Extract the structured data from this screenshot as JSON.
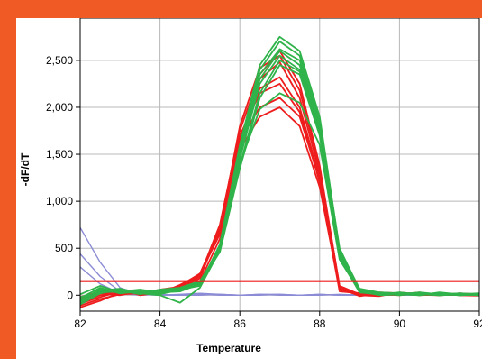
{
  "chart_data": {
    "type": "line",
    "title": "",
    "xlabel": "Temperature",
    "ylabel": "-dF/dT",
    "xlim": [
      82,
      92
    ],
    "ylim": [
      -170,
      2950
    ],
    "x_ticks": [
      82,
      84,
      86,
      88,
      90,
      92
    ],
    "x_tick_labels": [
      "82",
      "84",
      "86",
      "88",
      "90",
      "92"
    ],
    "y_ticks": [
      0,
      500,
      1000,
      1500,
      2000,
      2500
    ],
    "y_tick_labels": [
      "0",
      "500",
      "1,000",
      "1,500",
      "2,000",
      "2,500"
    ],
    "grid": true,
    "threshold": 150,
    "colors": {
      "frame": "#f05a24",
      "red_series": "#ee1c1c",
      "green_series": "#2fb34a",
      "blue_series": "#8c8cd6",
      "threshold": "#ee1c1c",
      "grid": "#b8b8b8"
    },
    "x": [
      82,
      82.5,
      83,
      83.5,
      84,
      84.5,
      85,
      85.5,
      86,
      86.5,
      87,
      87.5,
      88,
      88.5,
      89,
      89.5,
      90,
      90.5,
      91,
      91.5,
      92
    ],
    "series": [
      {
        "group": "red",
        "values": [
          -110,
          -40,
          10,
          20,
          30,
          60,
          150,
          600,
          1650,
          2300,
          2480,
          2100,
          1300,
          80,
          -10,
          20,
          10,
          5,
          0,
          10,
          0
        ]
      },
      {
        "group": "red",
        "values": [
          -90,
          -20,
          40,
          10,
          60,
          90,
          200,
          700,
          1800,
          2420,
          2550,
          2180,
          1350,
          100,
          10,
          30,
          20,
          0,
          10,
          5,
          0
        ]
      },
      {
        "group": "red",
        "values": [
          -60,
          20,
          0,
          40,
          20,
          110,
          220,
          650,
          1600,
          2200,
          2320,
          2000,
          1250,
          60,
          0,
          -10,
          30,
          10,
          0,
          20,
          10
        ]
      },
      {
        "group": "red",
        "values": [
          -130,
          -60,
          30,
          50,
          40,
          70,
          180,
          720,
          1700,
          2150,
          2250,
          1950,
          1200,
          40,
          20,
          10,
          0,
          20,
          10,
          0,
          -5
        ]
      },
      {
        "group": "red",
        "values": [
          -20,
          40,
          60,
          0,
          30,
          80,
          200,
          680,
          1550,
          1900,
          2000,
          1800,
          1150,
          70,
          10,
          20,
          10,
          30,
          0,
          10,
          0
        ]
      },
      {
        "group": "red",
        "values": [
          -80,
          0,
          20,
          30,
          50,
          90,
          210,
          750,
          1750,
          2350,
          2600,
          2250,
          1380,
          90,
          0,
          10,
          20,
          10,
          20,
          0,
          5
        ]
      },
      {
        "group": "red",
        "values": [
          -40,
          30,
          10,
          40,
          30,
          100,
          230,
          700,
          1650,
          2000,
          2100,
          1900,
          1220,
          60,
          20,
          0,
          10,
          20,
          10,
          10,
          0
        ]
      },
      {
        "group": "green",
        "values": [
          -60,
          60,
          40,
          20,
          0,
          -80,
          80,
          480,
          1500,
          2350,
          2620,
          2500,
          1800,
          450,
          40,
          10,
          20,
          0,
          30,
          10,
          0
        ]
      },
      {
        "group": "green",
        "values": [
          -100,
          20,
          60,
          40,
          30,
          40,
          120,
          520,
          1550,
          2400,
          2700,
          2550,
          1850,
          500,
          60,
          20,
          10,
          20,
          0,
          10,
          5
        ]
      },
      {
        "group": "green",
        "values": [
          -30,
          80,
          20,
          50,
          40,
          60,
          140,
          500,
          1450,
          2250,
          2550,
          2400,
          1750,
          420,
          50,
          10,
          30,
          10,
          20,
          0,
          10
        ]
      },
      {
        "group": "green",
        "values": [
          -80,
          40,
          50,
          10,
          50,
          70,
          130,
          460,
          1350,
          2100,
          2450,
          2350,
          1700,
          400,
          30,
          20,
          0,
          20,
          10,
          20,
          0
        ]
      },
      {
        "group": "green",
        "values": [
          10,
          100,
          30,
          30,
          20,
          50,
          110,
          540,
          1600,
          2450,
          2750,
          2600,
          1900,
          480,
          70,
          30,
          20,
          10,
          0,
          10,
          20
        ]
      },
      {
        "group": "green",
        "values": [
          -50,
          50,
          70,
          20,
          60,
          80,
          150,
          490,
          1400,
          1980,
          2150,
          2050,
          1600,
          380,
          40,
          0,
          10,
          30,
          10,
          0,
          10
        ]
      },
      {
        "group": "green",
        "values": [
          -20,
          30,
          40,
          60,
          30,
          50,
          130,
          510,
          1500,
          2300,
          2600,
          2450,
          1780,
          440,
          50,
          20,
          10,
          0,
          20,
          10,
          0
        ]
      },
      {
        "group": "green",
        "values": [
          -70,
          70,
          20,
          40,
          10,
          60,
          100,
          470,
          1380,
          2150,
          2500,
          2380,
          1720,
          410,
          30,
          10,
          20,
          20,
          0,
          20,
          10
        ]
      },
      {
        "group": "blue",
        "values": [
          720,
          350,
          80,
          10,
          0,
          10,
          20,
          10,
          0,
          10,
          10,
          0,
          10,
          0,
          10,
          0,
          0,
          10,
          0,
          10,
          0
        ]
      },
      {
        "group": "blue",
        "values": [
          440,
          200,
          40,
          10,
          0,
          0,
          10,
          0,
          0,
          10,
          0,
          0,
          0,
          10,
          0,
          10,
          0,
          0,
          10,
          0,
          0
        ]
      },
      {
        "group": "blue",
        "values": [
          300,
          120,
          20,
          0,
          10,
          0,
          0,
          10,
          0,
          0,
          10,
          0,
          10,
          0,
          0,
          0,
          10,
          0,
          0,
          0,
          10
        ]
      }
    ]
  }
}
